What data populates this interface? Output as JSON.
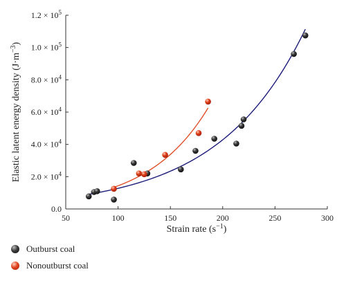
{
  "chart_data": {
    "type": "scatter",
    "xlabel": "Strain rate (s",
    "xlabel_sup": "−1",
    "xlabel_end": ")",
    "ylabel": "Elastic latent energy density (J·m",
    "ylabel_sup": "−3",
    "ylabel_end": ")",
    "xlim": [
      50,
      300
    ],
    "ylim": [
      0,
      120000
    ],
    "x_ticks": [
      50,
      100,
      150,
      200,
      250,
      300
    ],
    "y_ticks": [
      {
        "value": 0,
        "mantissa": "0.0",
        "exp": ""
      },
      {
        "value": 20000,
        "mantissa": "2.0 × 10",
        "exp": "4"
      },
      {
        "value": 40000,
        "mantissa": "4.0 × 10",
        "exp": "4"
      },
      {
        "value": 60000,
        "mantissa": "6.0 × 10",
        "exp": "4"
      },
      {
        "value": 80000,
        "mantissa": "8.0 × 10",
        "exp": "4"
      },
      {
        "value": 100000,
        "mantissa": "1.0 × 10",
        "exp": "5"
      },
      {
        "value": 120000,
        "mantissa": "1.2 × 10",
        "exp": "5"
      }
    ],
    "series": [
      {
        "name": "Outburst coal",
        "color": "#1f1f1f",
        "fit_color": "#1c1c7a",
        "fit_x_range": [
          72,
          279
        ],
        "points": [
          [
            72,
            7800
          ],
          [
            77,
            10500
          ],
          [
            80,
            11000
          ],
          [
            96,
            5800
          ],
          [
            115,
            28500
          ],
          [
            128,
            22000
          ],
          [
            160,
            24500
          ],
          [
            174,
            36000
          ],
          [
            192,
            43500
          ],
          [
            213,
            40500
          ],
          [
            218,
            51500
          ],
          [
            220,
            55500
          ],
          [
            268,
            96000
          ],
          [
            279,
            107500
          ]
        ]
      },
      {
        "name": "Nonoutburst coal",
        "color": "#d23a1a",
        "fit_color": "#e0502a",
        "fit_x_range": [
          96,
          186
        ],
        "points": [
          [
            96,
            12500
          ],
          [
            120,
            22000
          ],
          [
            125,
            21500
          ],
          [
            145,
            33500
          ],
          [
            177,
            47000
          ],
          [
            186,
            66500
          ]
        ]
      }
    ]
  }
}
